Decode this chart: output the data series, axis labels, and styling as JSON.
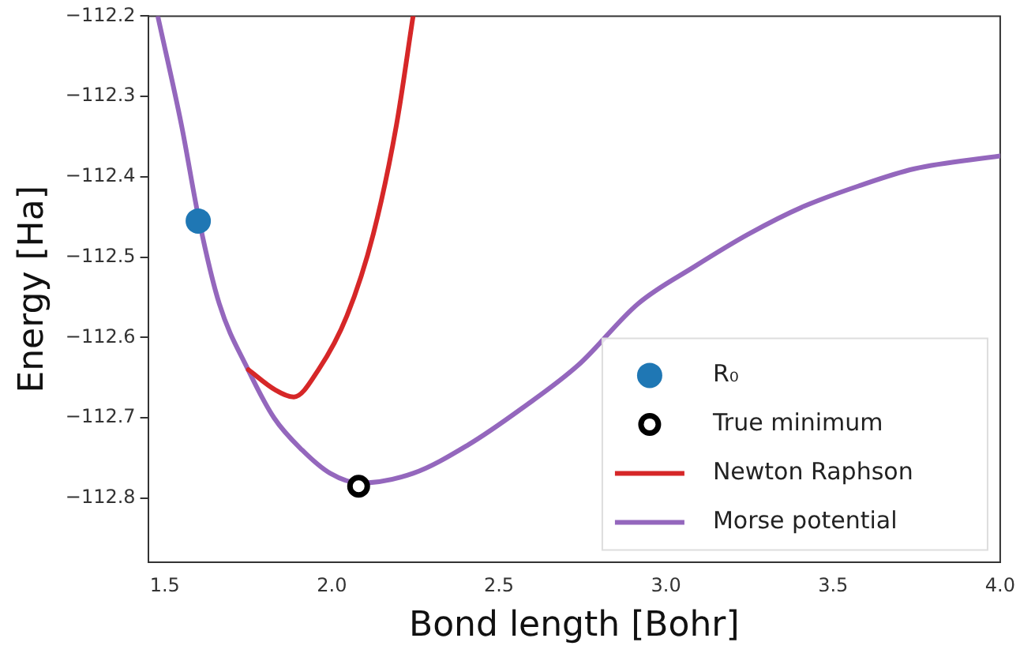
{
  "chart_data": {
    "type": "line",
    "xlabel": "Bond length [Bohr]",
    "ylabel": "Energy [Ha]",
    "xlim": [
      1.45,
      4.0
    ],
    "ylim": [
      -112.88,
      -112.2
    ],
    "xticks": [
      1.5,
      {
        "value": 2,
        "label": "2.0"
      },
      2.5,
      {
        "value": 3,
        "label": "3.0"
      },
      3.5,
      {
        "value": 4,
        "label": "4.0"
      }
    ],
    "yticks": [
      -112.8,
      -112.7,
      -112.6,
      -112.5,
      -112.4,
      -112.3,
      -112.2
    ],
    "grid": false,
    "legend": "bottom right",
    "line_style": "solid",
    "series": [
      {
        "name": "R₀",
        "type": "scatter",
        "marker": "circle",
        "color": "#1f77b4",
        "x": [
          1.6
        ],
        "values": [
          -112.455
        ]
      },
      {
        "name": "True minimum",
        "type": "scatter",
        "marker": "circle",
        "color": "#000000",
        "x": [
          2.08
        ],
        "values": [
          -112.785
        ]
      },
      {
        "name": "Newton Raphson",
        "type": "line",
        "color": "#d62728",
        "x": [
          1.75,
          1.83,
          1.886,
          1.96,
          2.045,
          2.124,
          2.193,
          2.243
        ],
        "values": [
          -112.64,
          -112.665,
          -112.674,
          -112.64,
          -112.573,
          -112.471,
          -112.336,
          -112.2
        ]
      },
      {
        "name": "Morse potential",
        "type": "line",
        "color": "#9467bd",
        "x": [
          1.48,
          1.55,
          1.604,
          1.663,
          1.748,
          1.827,
          1.911,
          1.995,
          2.084,
          2.243,
          2.406,
          2.569,
          2.738,
          2.916,
          3.084,
          3.248,
          3.411,
          3.579,
          3.743,
          4.0
        ],
        "values": [
          -112.202,
          -112.336,
          -112.457,
          -112.558,
          -112.639,
          -112.7,
          -112.74,
          -112.769,
          -112.781,
          -112.769,
          -112.734,
          -112.688,
          -112.634,
          -112.558,
          -112.512,
          -112.471,
          -112.437,
          -112.411,
          -112.39,
          -112.374
        ]
      }
    ]
  }
}
